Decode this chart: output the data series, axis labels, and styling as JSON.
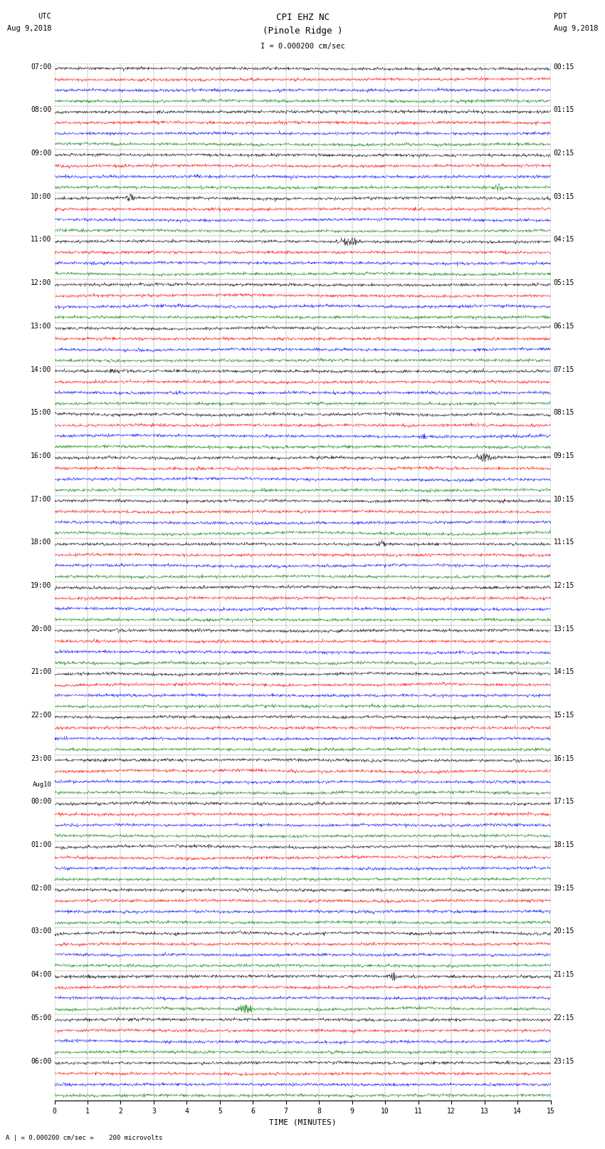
{
  "title_line1": "CPI EHZ NC",
  "title_line2": "(Pinole Ridge )",
  "scale_text": "I = 0.000200 cm/sec",
  "left_header": "UTC",
  "left_date": "Aug 9,2018",
  "right_header": "PDT",
  "right_date": "Aug 9,2018",
  "xlabel": "TIME (MINUTES)",
  "footer_text": "A | = 0.000200 cm/sec =    200 microvolts",
  "background_color": "#ffffff",
  "trace_colors": [
    "#000000",
    "#ff0000",
    "#0000ff",
    "#008000"
  ],
  "left_times_by_group": [
    "07:00",
    "08:00",
    "09:00",
    "10:00",
    "11:00",
    "12:00",
    "13:00",
    "14:00",
    "15:00",
    "16:00",
    "17:00",
    "18:00",
    "19:00",
    "20:00",
    "21:00",
    "22:00",
    "23:00",
    "00:00",
    "01:00",
    "02:00",
    "03:00",
    "04:00",
    "05:00",
    "06:00"
  ],
  "right_times_by_group": [
    "00:15",
    "01:15",
    "02:15",
    "03:15",
    "04:15",
    "05:15",
    "06:15",
    "07:15",
    "08:15",
    "09:15",
    "10:15",
    "11:15",
    "12:15",
    "13:15",
    "14:15",
    "15:15",
    "16:15",
    "17:15",
    "18:15",
    "19:15",
    "20:15",
    "21:15",
    "22:15",
    "23:15"
  ],
  "aug10_group": 17,
  "n_rows": 96,
  "n_traces_per_row": 4,
  "n_groups": 24,
  "xmin": 0,
  "xmax": 15,
  "xticks": [
    0,
    1,
    2,
    3,
    4,
    5,
    6,
    7,
    8,
    9,
    10,
    11,
    12,
    13,
    14,
    15
  ],
  "grid_color": "#888888",
  "grid_linewidth": 0.3,
  "trace_amplitude": 0.38,
  "noise_amplitude": 0.07,
  "seed": 42
}
